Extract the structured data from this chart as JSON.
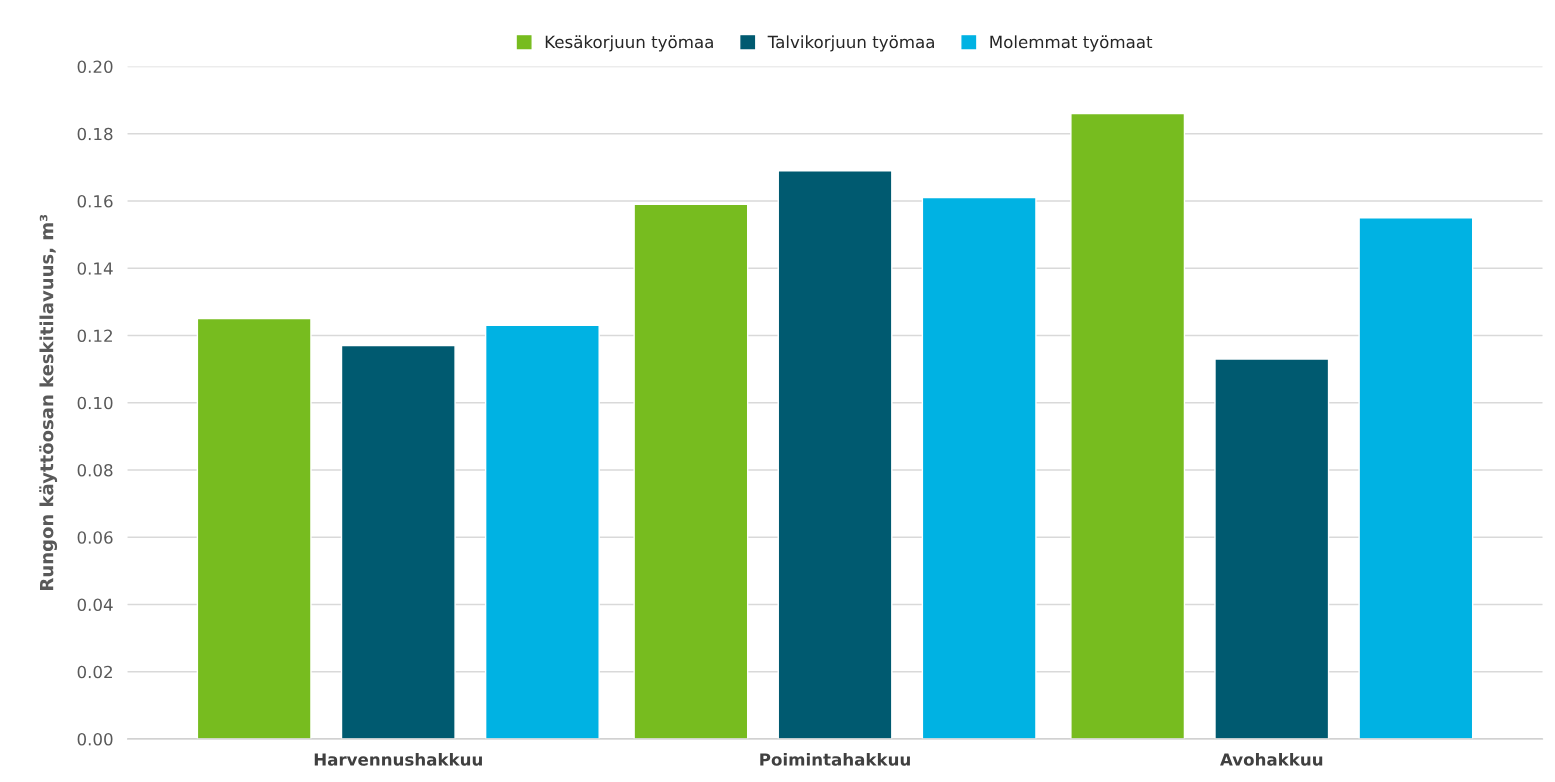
{
  "chart_data": {
    "type": "bar",
    "ylabel": "Rungon käyttöosan keskitilavuus, m³",
    "categories": [
      "Harvennushakkuu",
      "Poimintahakkuu",
      "Avohakkuu"
    ],
    "series": [
      {
        "name": "Kesäkorjuun työmaa",
        "color": "#77bc1f",
        "values": [
          0.125,
          0.159,
          0.186
        ]
      },
      {
        "name": "Talvikorjuun työmaa",
        "color": "#005a70",
        "values": [
          0.117,
          0.169,
          0.113
        ]
      },
      {
        "name": "Molemmat työmaat",
        "color": "#00b2e3",
        "values": [
          0.123,
          0.161,
          0.155
        ]
      }
    ],
    "ylim": [
      0,
      0.2
    ],
    "yticks": [
      {
        "value": 0,
        "label": "0.00"
      },
      {
        "value": 0.02,
        "label": "0.02"
      },
      {
        "value": 0.04,
        "label": "0.04"
      },
      {
        "value": 0.06,
        "label": "0.06"
      },
      {
        "value": 0.08,
        "label": "0.08"
      },
      {
        "value": 0.1,
        "label": "0.10"
      },
      {
        "value": 0.12,
        "label": "0.12"
      },
      {
        "value": 0.14,
        "label": "0.14"
      },
      {
        "value": 0.16,
        "label": "0.16"
      },
      {
        "value": 0.18,
        "label": "0.18"
      },
      {
        "value": 0.2,
        "label": "0.20"
      }
    ],
    "grid": "y",
    "legend": "top"
  }
}
